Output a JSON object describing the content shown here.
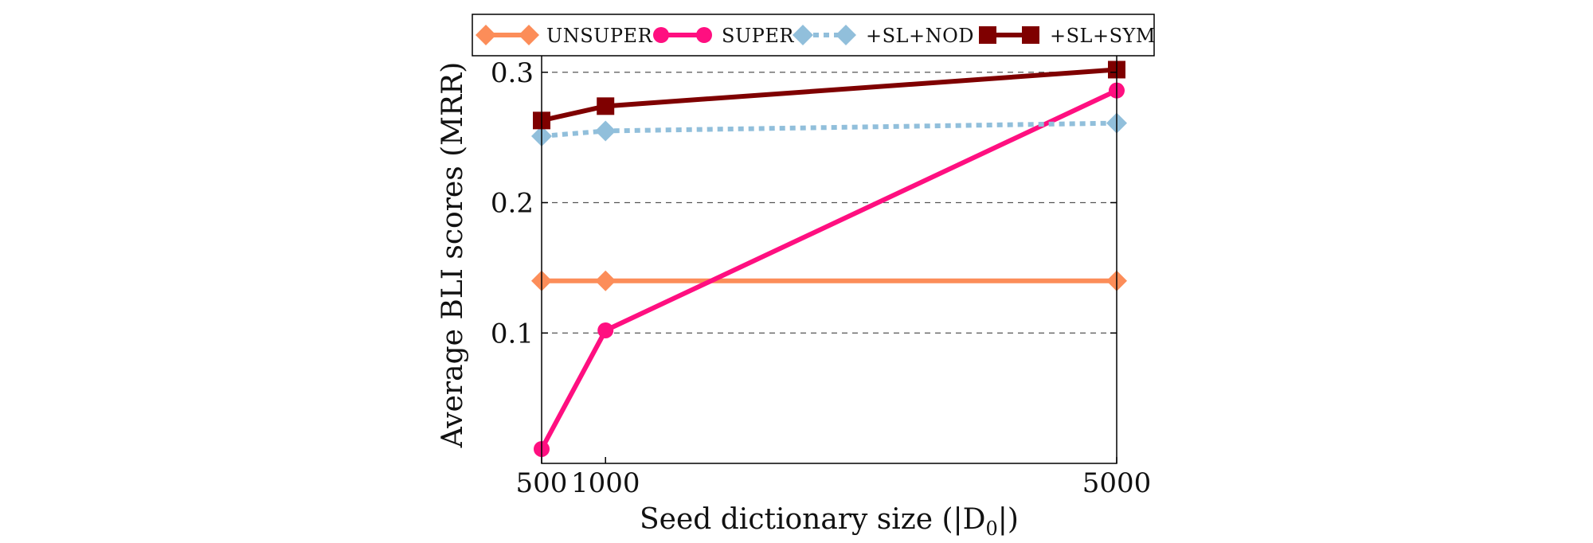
{
  "chart_data": {
    "type": "line",
    "xlabel": "Seed dictionary size (|D",
    "xlabel_subscript": "0",
    "xlabel_suffix": "|)",
    "ylabel": "Average BLI scores (MRR)",
    "x": [
      500,
      1000,
      5000
    ],
    "xlim": [
      500,
      5000
    ],
    "ylim": [
      0.0,
      0.32
    ],
    "xticks": [
      500,
      1000,
      5000
    ],
    "xtick_labels": [
      "500",
      "1000",
      "5000"
    ],
    "yticks": [
      0.1,
      0.2,
      0.3
    ],
    "ytick_labels": [
      "0.1",
      "0.2",
      "0.3"
    ],
    "grid": "horizontal dashed",
    "legend_position": "top",
    "series": [
      {
        "name": "UNSUPER",
        "values": [
          0.14,
          0.14,
          0.14
        ],
        "color": "#fc8d59",
        "marker": "diamond",
        "dash": "solid"
      },
      {
        "name": "SUPER",
        "values": [
          0.011,
          0.102,
          0.286
        ],
        "color": "#ff0f80",
        "marker": "circle",
        "dash": "solid"
      },
      {
        "name": "+SL+NOD",
        "values": [
          0.251,
          0.255,
          0.261
        ],
        "color": "#91bfdb",
        "marker": "diamond",
        "dash": "dotted"
      },
      {
        "name": "+SL+SYM",
        "values": [
          0.263,
          0.274,
          0.302
        ],
        "color": "#7f0000",
        "marker": "square",
        "dash": "solid"
      }
    ]
  }
}
